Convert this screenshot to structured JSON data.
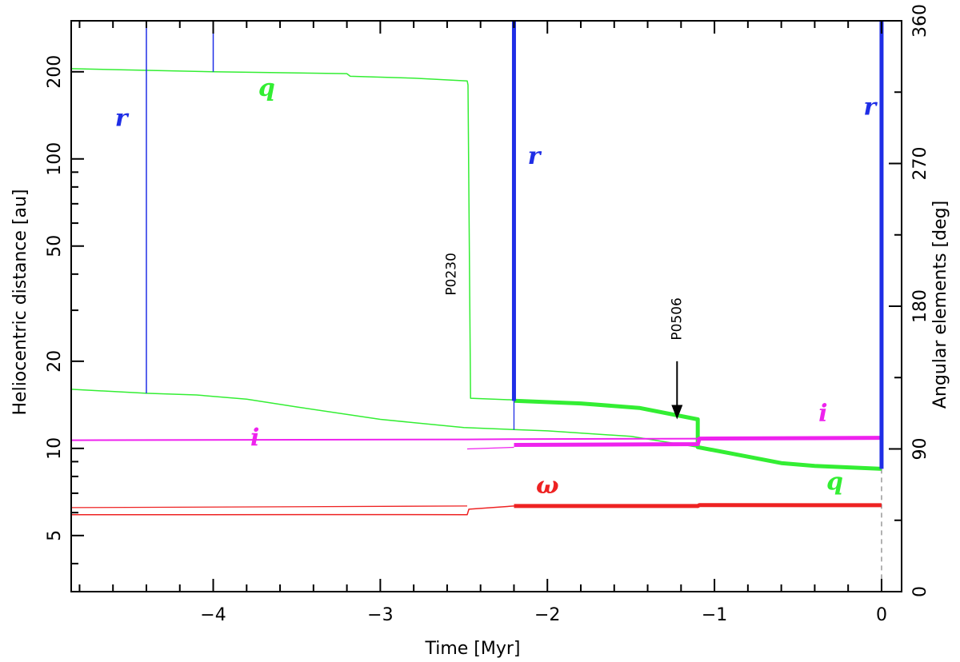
{
  "chart_data": {
    "type": "line",
    "xlabel": "Time [Myr]",
    "ylabel_left": "Heliocentric distance [au]",
    "ylabel_right": "Angular elements [deg]",
    "xlim": [
      -4.85,
      0.12
    ],
    "ylim_left": [
      3.2,
      300
    ],
    "yscale_left": "log",
    "ylim_right": [
      0,
      360
    ],
    "grid": false,
    "x_ticks": [
      -4,
      -3,
      -2,
      -1,
      0
    ],
    "x_tick_labels": [
      "−4",
      "−3",
      "−2",
      "−1",
      "0"
    ],
    "y_left_ticks": [
      5,
      10,
      20,
      50,
      100,
      200
    ],
    "y_left_tick_labels": [
      "5",
      "10",
      "20",
      "50",
      "100",
      "200"
    ],
    "y_right_ticks": [
      0,
      90,
      180,
      270,
      360
    ],
    "y_right_tick_labels": [
      "0",
      "90",
      "180",
      "270",
      "360"
    ],
    "colors": {
      "r": "#1f2ee6",
      "q": "#33ee33",
      "i": "#ee22ee",
      "omega": "#ee2222"
    },
    "series": [
      {
        "name": "q",
        "axis": "left",
        "color": "#33ee33",
        "width": 1.5,
        "x": [
          -4.85,
          -4.0,
          -3.2,
          -3.18,
          -2.8,
          -2.48,
          -2.475,
          -2.46,
          -2.2
        ],
        "y": [
          205,
          200,
          197,
          193,
          190,
          186,
          180,
          14.9,
          14.7
        ]
      },
      {
        "name": "q",
        "axis": "left",
        "color": "#33ee33",
        "width": 1.5,
        "x": [
          -4.85,
          -4.4,
          -4.1,
          -3.8,
          -3.5,
          -3.0,
          -2.5,
          -2.0,
          -1.5,
          -1.1
        ],
        "y": [
          16.0,
          15.5,
          15.3,
          14.8,
          13.9,
          12.6,
          11.8,
          11.5,
          11.0,
          10.1
        ]
      },
      {
        "name": "q",
        "axis": "left",
        "color": "#33ee33",
        "width": 5,
        "x": [
          -2.2,
          -1.8,
          -1.45,
          -1.1,
          -1.1,
          -0.9,
          -0.6,
          -0.4,
          0
        ],
        "y": [
          14.6,
          14.3,
          13.8,
          12.6,
          10.1,
          9.6,
          8.9,
          8.7,
          8.5
        ]
      },
      {
        "name": "i",
        "axis": "right",
        "color": "#ee22ee",
        "width": 2,
        "x": [
          -4.85,
          -2.48,
          -2.2,
          -1.0,
          0
        ],
        "y": [
          95.5,
          96,
          96.2,
          96.5,
          97
        ]
      },
      {
        "name": "i",
        "axis": "right",
        "color": "#ee22ee",
        "width": 1.3,
        "x": [
          -2.48,
          -2.2
        ],
        "y": [
          90,
          91
        ]
      },
      {
        "name": "i",
        "axis": "right",
        "color": "#ee22ee",
        "width": 5,
        "x": [
          -2.2,
          -1.1,
          -1.09,
          0
        ],
        "y": [
          92.5,
          93,
          96.5,
          97
        ]
      },
      {
        "name": "ω",
        "axis": "right",
        "color": "#ee2222",
        "width": 1.3,
        "x": [
          -4.85,
          -2.48
        ],
        "y": [
          53,
          54
        ]
      },
      {
        "name": "ω",
        "axis": "right",
        "color": "#ee2222",
        "width": 1.5,
        "x": [
          -4.85,
          -3.0,
          -2.48,
          -2.47,
          -2.2
        ],
        "y": [
          48.5,
          48.6,
          48.5,
          52,
          54
        ]
      },
      {
        "name": "ω",
        "axis": "right",
        "color": "#ee2222",
        "width": 5,
        "x": [
          -2.2,
          -1.1,
          -1.09,
          0
        ],
        "y": [
          54,
          54,
          54.6,
          54.5
        ]
      }
    ],
    "vertical_lines": [
      {
        "x": -4.4,
        "from": 15.5,
        "to": 300,
        "color": "#1f2ee6",
        "width": 1.5
      },
      {
        "x": -4.0,
        "from": 200,
        "to": 300,
        "color": "#1f2ee6",
        "width": 1.5
      },
      {
        "x": -2.2,
        "from": 11.6,
        "to": 300,
        "color": "#1f2ee6",
        "width": 1.3
      },
      {
        "x": -2.2,
        "from": 14.6,
        "to": 300,
        "color": "#1f2ee6",
        "width": 5
      },
      {
        "x": 0.0,
        "from": 8.5,
        "to": 300,
        "color": "#1f2ee6",
        "width": 5
      }
    ],
    "dashed_line": {
      "x": 0.0,
      "from": 3.2,
      "to": 8.5,
      "color": "#999999"
    },
    "series_labels": [
      {
        "text": "r",
        "x": -4.55,
        "y": 130,
        "color": "#1f2ee6"
      },
      {
        "text": "r",
        "x": -2.08,
        "y": 96,
        "color": "#1f2ee6"
      },
      {
        "text": "r",
        "x": -0.07,
        "y": 142,
        "color": "#1f2ee6"
      },
      {
        "text": "q",
        "x": -3.68,
        "y": 165,
        "color": "#33ee33"
      },
      {
        "text": "q",
        "x": -0.28,
        "y": 7.2,
        "color": "#33ee33"
      },
      {
        "text": "i",
        "x": -3.75,
        "y": 10.2,
        "color": "#ee22ee"
      },
      {
        "text": "i",
        "x": -0.35,
        "y": 12.4,
        "color": "#ee22ee"
      },
      {
        "text": "ω",
        "x": -2.0,
        "y": 7.0,
        "color": "#ee2222"
      }
    ],
    "annotations": [
      {
        "text": "P0230",
        "x": -2.55,
        "y": 40,
        "rotate": -90
      },
      {
        "text": "P0506",
        "x": -1.2,
        "y": 28,
        "rotate": -90,
        "arrow_to": 12.6,
        "arrow_from": 20
      }
    ]
  }
}
